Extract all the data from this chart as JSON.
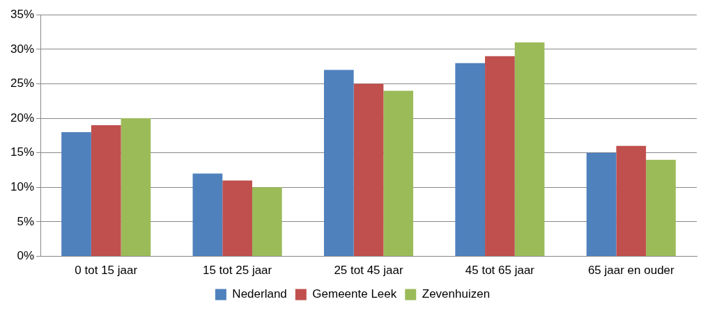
{
  "chart_data": {
    "type": "bar",
    "categories": [
      "0 tot 15 jaar",
      "15 tot 25 jaar",
      "25 tot 45 jaar",
      "45 tot 65 jaar",
      "65 jaar en ouder"
    ],
    "series": [
      {
        "name": "Nederland",
        "color": "#4f81bd",
        "values": [
          18,
          12,
          27,
          28,
          15
        ]
      },
      {
        "name": "Gemeente Leek",
        "color": "#c0504d",
        "values": [
          19,
          11,
          25,
          29,
          16
        ]
      },
      {
        "name": "Zevenhuizen",
        "color": "#9bbb59",
        "values": [
          20,
          10,
          24,
          31,
          14
        ]
      }
    ],
    "ylim": [
      0,
      35
    ],
    "yticks": [
      {
        "value": 0,
        "label": "0%"
      },
      {
        "value": 5,
        "label": "5%"
      },
      {
        "value": 10,
        "label": "10%"
      },
      {
        "value": 15,
        "label": "15%"
      },
      {
        "value": 20,
        "label": "20%"
      },
      {
        "value": 25,
        "label": "25%"
      },
      {
        "value": 30,
        "label": "30%"
      },
      {
        "value": 35,
        "label": "35%"
      }
    ],
    "grid": "y",
    "legend": "bottom"
  }
}
